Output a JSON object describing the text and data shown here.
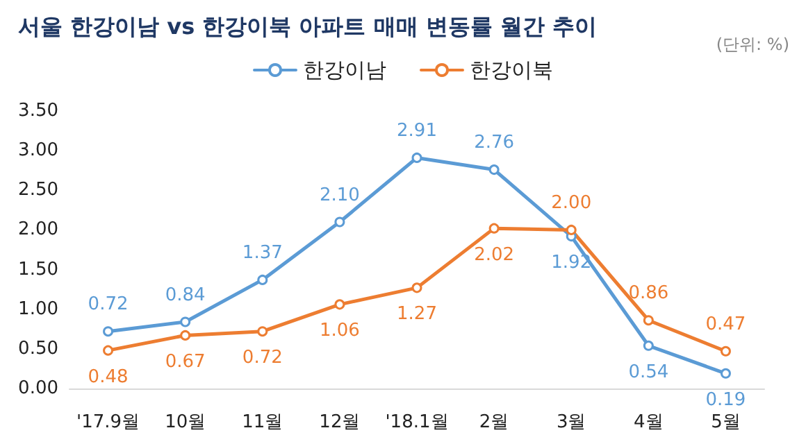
{
  "chart_data": {
    "type": "line",
    "title": "서울 한강이남 vs 한강이북 아파트 매매 변동률 월간 추이",
    "annotations": [
      "(단위: %)"
    ],
    "categories": [
      "'17.9월",
      "10월",
      "11월",
      "12월",
      "'18.1월",
      "2월",
      "3월",
      "4월",
      "5월"
    ],
    "series": [
      {
        "name": "한강이남",
        "color": "#5b9bd5",
        "values": [
          0.72,
          0.84,
          1.37,
          2.1,
          2.91,
          2.76,
          1.92,
          0.54,
          0.19
        ],
        "value_labels": [
          "0.72",
          "0.84",
          "1.37",
          "2.10",
          "2.91",
          "2.76",
          "1.92",
          "0.54",
          "0.19"
        ]
      },
      {
        "name": "한강이북",
        "color": "#ed7d31",
        "values": [
          0.48,
          0.67,
          0.72,
          1.06,
          1.27,
          2.02,
          2.0,
          0.86,
          0.47
        ],
        "value_labels": [
          "0.48",
          "0.67",
          "0.72",
          "1.06",
          "1.27",
          "2.02",
          "2.00",
          "0.86",
          "0.47"
        ]
      }
    ],
    "ylim": [
      0,
      3.5
    ],
    "yticks": [
      {
        "value": 0,
        "label": "0.00"
      },
      {
        "value": 0.5,
        "label": "0.50"
      },
      {
        "value": 1,
        "label": "1.00"
      },
      {
        "value": 1.5,
        "label": "1.50"
      },
      {
        "value": 2,
        "label": "2.00"
      },
      {
        "value": 2.5,
        "label": "2.50"
      },
      {
        "value": 3,
        "label": "3.00"
      },
      {
        "value": 3.5,
        "label": "3.50"
      }
    ],
    "grid": false,
    "legend": "top",
    "marker": "circle",
    "line_style": "solid"
  }
}
